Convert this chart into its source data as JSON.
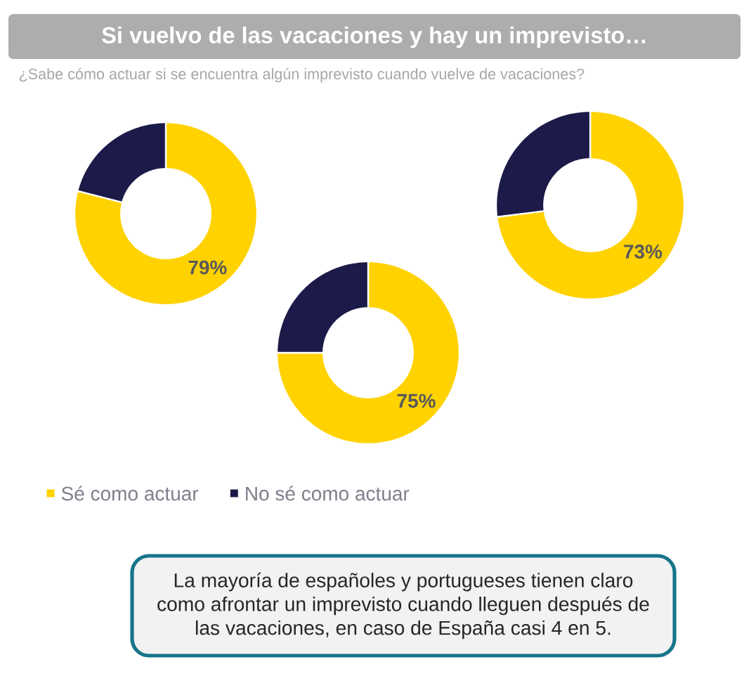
{
  "chart_data": [
    {
      "type": "donut",
      "title": "Si vuelvo de las vacaciones y hay un imprevisto…",
      "subtitle": "¿Sabe cómo actuar si se encuentra algún imprevisto cuando vuelve de vacaciones?",
      "categories": [
        "Sé como actuar",
        "No sé como actuar"
      ],
      "values": [
        79,
        21
      ],
      "colors": [
        "#FFD200",
        "#1C1A48"
      ],
      "value_labels": [
        "79%",
        null
      ],
      "legend": "bottom",
      "annotations": [
        "La mayoría de españoles y portugueses tienen claro como afrontar un imprevisto cuando lleguen después de las vacaciones, en caso de España casi 4 en 5."
      ]
    },
    {
      "type": "donut",
      "categories": [
        null,
        null
      ],
      "values": [
        73,
        27
      ],
      "colors": [
        "#FFD200",
        "#1C1A48"
      ],
      "value_labels": [
        "73%",
        null
      ]
    },
    {
      "type": "donut",
      "categories": [
        null,
        null
      ],
      "values": [
        75,
        25
      ],
      "colors": [
        "#FFD200",
        "#1C1A48"
      ],
      "value_labels": [
        "75%",
        null
      ]
    }
  ]
}
